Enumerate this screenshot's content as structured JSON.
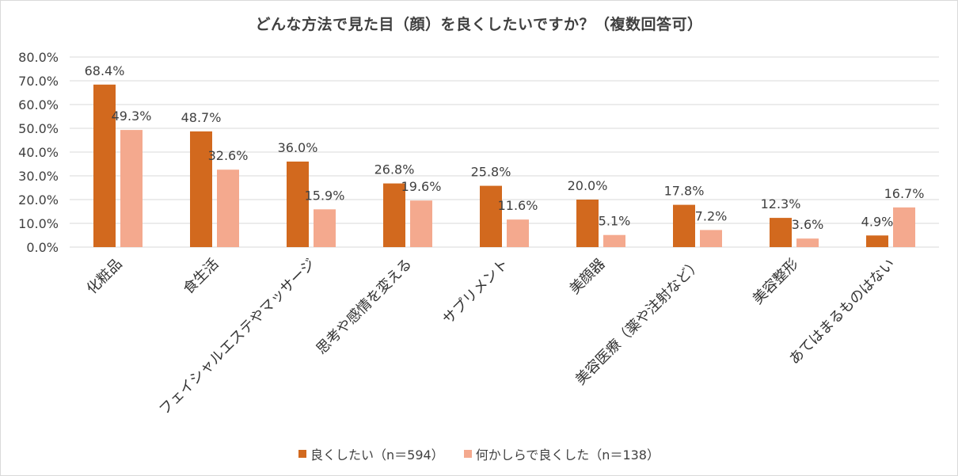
{
  "colors": {
    "series1": "#d2691e",
    "series2": "#f4a98e",
    "grid": "#d9d9d9",
    "text": "#404040"
  },
  "chart_data": {
    "type": "bar",
    "title": "どんな方法で見た目（顔）を良くしたいですか？（複数回答可）",
    "xlabel": "",
    "ylabel": "",
    "ylim": [
      0,
      80
    ],
    "yticks": [
      "0.0%",
      "10.0%",
      "20.0%",
      "30.0%",
      "40.0%",
      "50.0%",
      "60.0%",
      "70.0%",
      "80.0%"
    ],
    "grid": true,
    "legend_position": "bottom",
    "categories": [
      "化粧品",
      "食生活",
      "フェイシャルエステやマッサージ",
      "思考や感情を変える",
      "サプリメント",
      "美顔器",
      "美容医療（薬や注射など）",
      "美容整形",
      "あてはまるものはない"
    ],
    "series": [
      {
        "name": "良くしたい（n＝594）",
        "values": [
          68.4,
          48.7,
          36.0,
          26.8,
          25.8,
          20.0,
          17.8,
          12.3,
          4.9
        ],
        "labels": [
          "68.4%",
          "48.7%",
          "36.0%",
          "26.8%",
          "25.8%",
          "20.0%",
          "17.8%",
          "12.3%",
          "4.9%"
        ]
      },
      {
        "name": "何かしらで良くした（n＝138）",
        "values": [
          49.3,
          32.6,
          15.9,
          19.6,
          11.6,
          5.1,
          7.2,
          3.6,
          16.7
        ],
        "labels": [
          "49.3%",
          "32.6%",
          "15.9%",
          "19.6%",
          "11.6%",
          "5.1%",
          "7.2%",
          "3.6%",
          "16.7%"
        ]
      }
    ]
  }
}
